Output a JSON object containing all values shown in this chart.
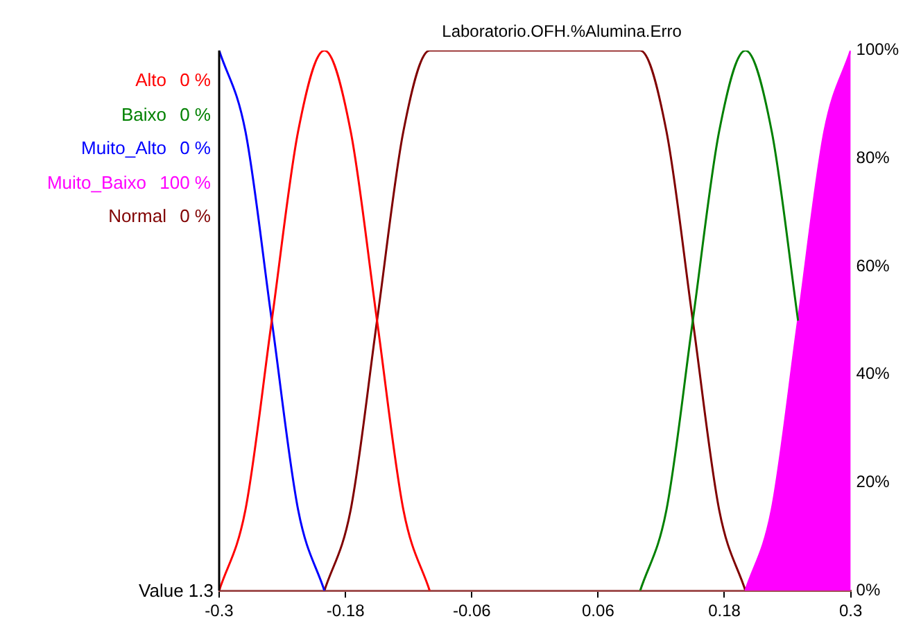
{
  "chart_data": {
    "type": "line",
    "title": "Laboratorio.OFH.%Alumina.Erro",
    "x": [
      -0.3,
      -0.275,
      -0.25,
      -0.225,
      -0.2,
      -0.175,
      -0.15,
      -0.125,
      -0.1,
      -0.075,
      -0.05,
      -0.025,
      0,
      0.025,
      0.05,
      0.075,
      0.1,
      0.125,
      0.15,
      0.175,
      0.2,
      0.225,
      0.25,
      0.275,
      0.3
    ],
    "series": [
      {
        "name": "Alto",
        "color": "#ff0000",
        "values": [
          0,
          15,
          50,
          85,
          100,
          85,
          50,
          15,
          0,
          null,
          null,
          null,
          null,
          null,
          null,
          null,
          null,
          null,
          null,
          null,
          null,
          null,
          null,
          null,
          null
        ]
      },
      {
        "name": "Baixo",
        "color": "#008000",
        "values": [
          null,
          null,
          null,
          null,
          null,
          null,
          null,
          null,
          null,
          null,
          null,
          null,
          null,
          null,
          null,
          null,
          0,
          15,
          50,
          85,
          100,
          85,
          50,
          null,
          null
        ]
      },
      {
        "name": "Muito_Alto",
        "color": "#0000ff",
        "values": [
          100,
          85,
          50,
          15,
          0,
          null,
          null,
          null,
          null,
          null,
          null,
          null,
          null,
          null,
          null,
          null,
          null,
          null,
          null,
          null,
          null,
          null,
          null,
          null,
          null
        ]
      },
      {
        "name": "Muito_Baixo",
        "type": "area",
        "color": "#ff00ff",
        "values": [
          null,
          null,
          null,
          null,
          null,
          null,
          null,
          null,
          null,
          null,
          null,
          null,
          null,
          null,
          null,
          null,
          null,
          null,
          null,
          null,
          0,
          15,
          50,
          85,
          100
        ]
      },
      {
        "name": "Normal",
        "color": "#800000",
        "values": [
          null,
          null,
          null,
          null,
          0,
          15,
          50,
          85,
          100,
          100,
          100,
          100,
          100,
          100,
          100,
          100,
          100,
          85,
          50,
          15,
          0,
          null,
          null,
          null,
          null
        ]
      }
    ],
    "annotations": [
      "0 %",
      "0 %",
      "0 %",
      "100 %",
      "0 %",
      "Value 1.3"
    ],
    "xlim": [
      -0.3,
      0.3
    ],
    "xticks": [
      -0.3,
      -0.18,
      -0.06,
      0.06,
      0.18,
      0.3
    ],
    "ylim": [
      0,
      100
    ],
    "yticks": [
      {
        "value": 0,
        "label": "0%"
      },
      {
        "value": 20,
        "label": "20%"
      },
      {
        "value": 40,
        "label": "40%"
      },
      {
        "value": 60,
        "label": "60%"
      },
      {
        "value": 80,
        "label": "80%"
      },
      {
        "value": 100,
        "label": "100%"
      }
    ],
    "legend": "left",
    "grid": false,
    "marker": "none",
    "line_style": "solid"
  }
}
